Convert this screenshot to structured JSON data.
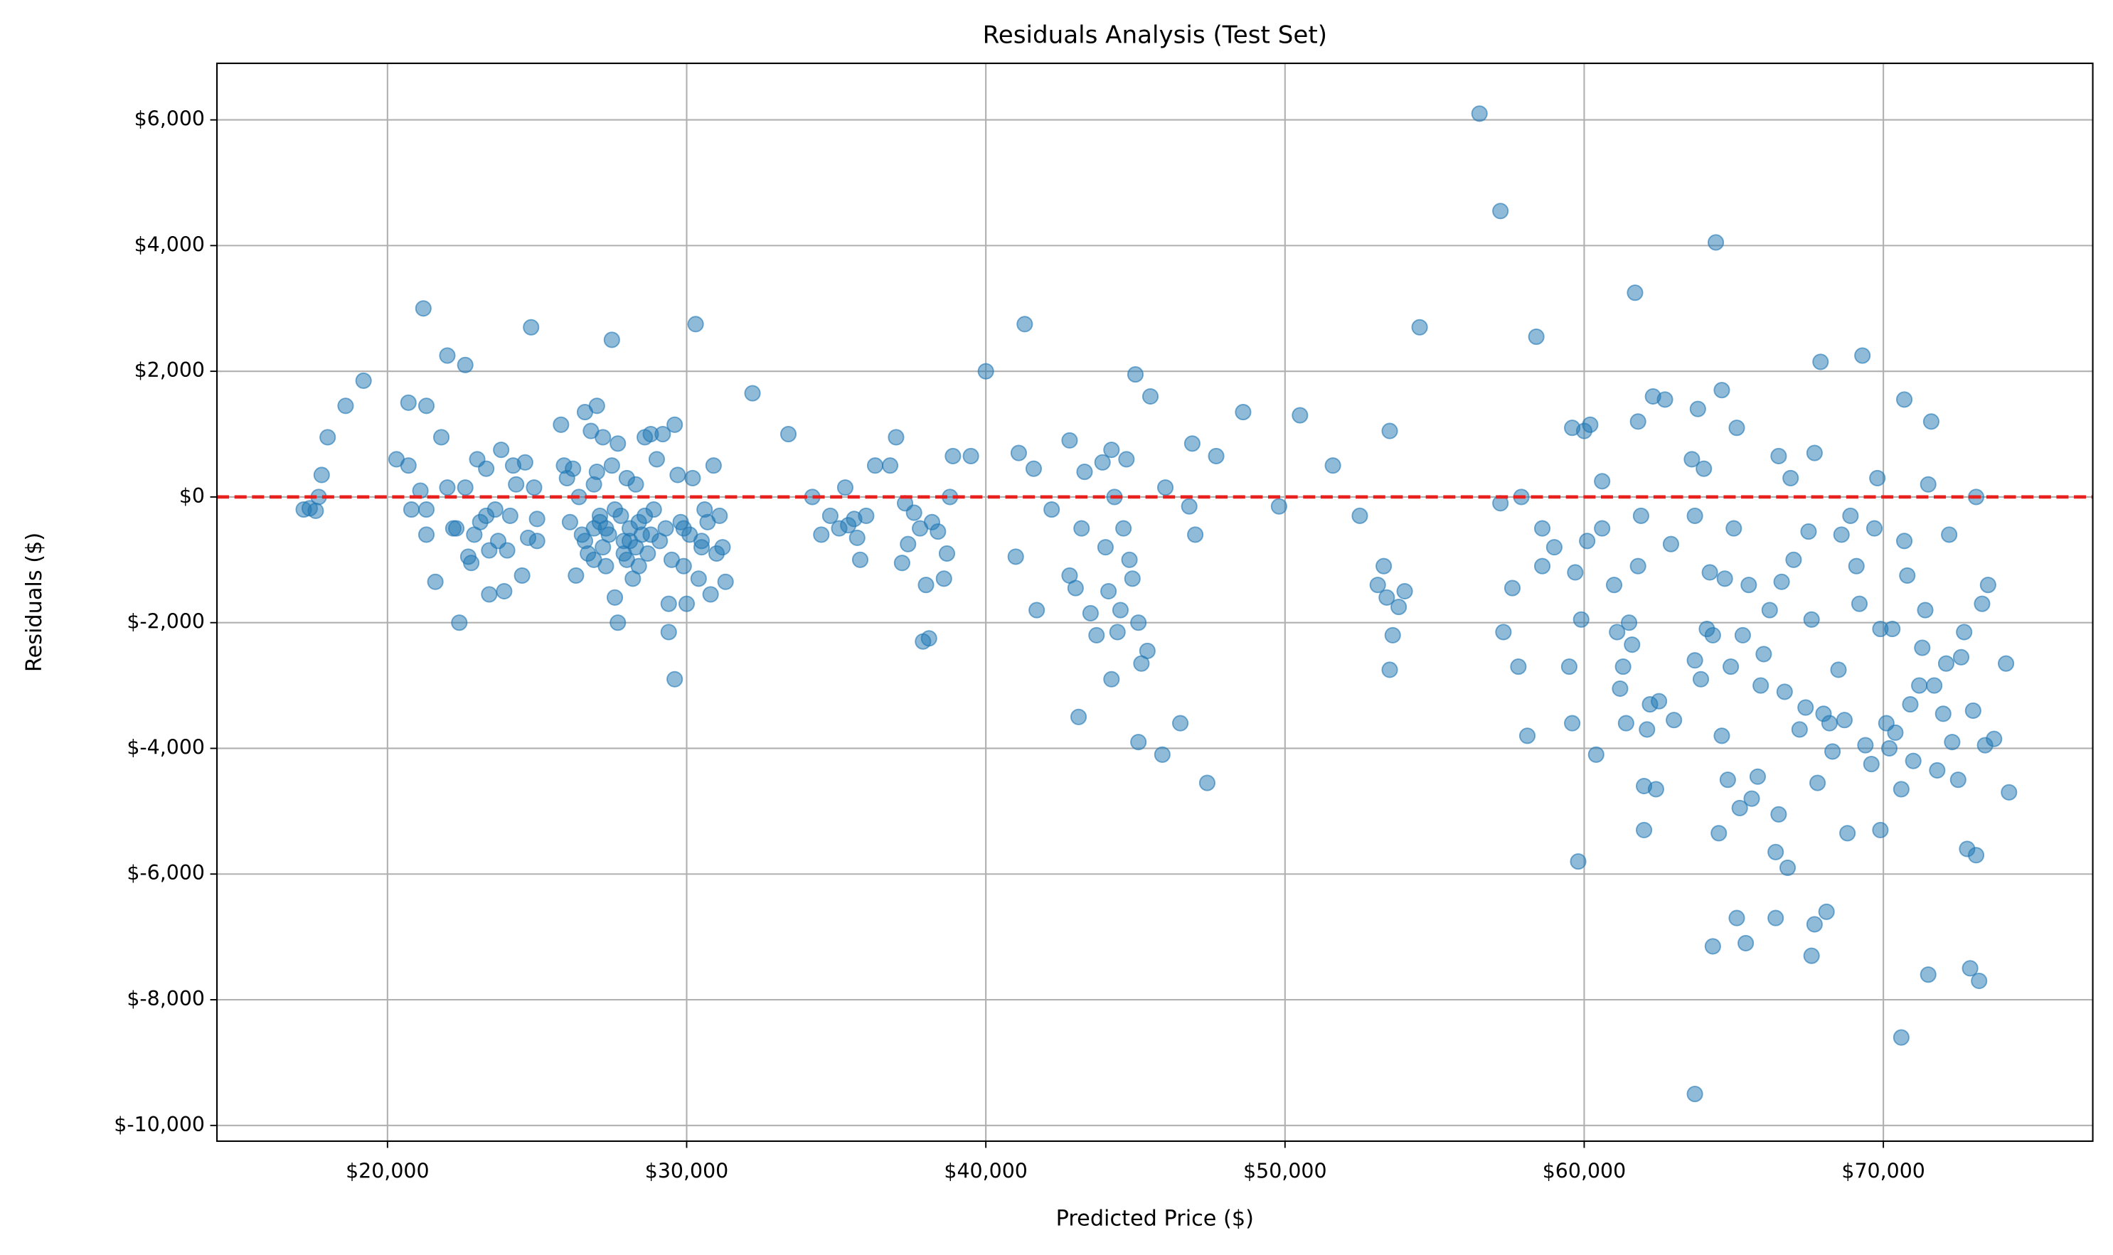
{
  "chart_data": {
    "type": "scatter",
    "title": "Residuals Analysis (Test Set)",
    "x_label": "Predicted Price ($)",
    "y_label": "Residuals ($)",
    "color": "#1f77b4",
    "grid": true,
    "reference_line": {
      "value": 0,
      "color": "#e8201e",
      "style": "dashed"
    },
    "xlim": [
      14300,
      77000
    ],
    "ylim": [
      -10250,
      6900
    ],
    "xticks": [
      {
        "value": 20000,
        "label": "$20,000"
      },
      {
        "value": 30000,
        "label": "$30,000"
      },
      {
        "value": 40000,
        "label": "$40,000"
      },
      {
        "value": 50000,
        "label": "$50,000"
      },
      {
        "value": 60000,
        "label": "$60,000"
      },
      {
        "value": 70000,
        "label": "$70,000"
      }
    ],
    "yticks": [
      {
        "value": -10000,
        "label": "$-10,000"
      },
      {
        "value": -8000,
        "label": "$-8,000"
      },
      {
        "value": -6000,
        "label": "$-6,000"
      },
      {
        "value": -4000,
        "label": "$-4,000"
      },
      {
        "value": -2000,
        "label": "$-2,000"
      },
      {
        "value": 0,
        "label": "$0"
      },
      {
        "value": 2000,
        "label": "$2,000"
      },
      {
        "value": 4000,
        "label": "$4,000"
      },
      {
        "value": 6000,
        "label": "$6,000"
      }
    ],
    "x": [
      17200,
      17400,
      17600,
      17700,
      17800,
      18000,
      18600,
      19200,
      20300,
      20700,
      20700,
      20800,
      21100,
      21200,
      21300,
      21300,
      21300,
      21600,
      21800,
      22000,
      22000,
      22200,
      22300,
      22400,
      22600,
      22600,
      22700,
      22800,
      22900,
      23000,
      23100,
      23300,
      23300,
      23400,
      23400,
      23600,
      23700,
      23800,
      23900,
      24000,
      24100,
      24200,
      24300,
      24500,
      24600,
      24700,
      24800,
      24900,
      25000,
      25000,
      25800,
      25900,
      26000,
      26100,
      26200,
      26300,
      26400,
      26500,
      26600,
      26700,
      26800,
      26900,
      26900,
      27000,
      27000,
      27100,
      27200,
      27200,
      27300,
      27400,
      27500,
      27500,
      27600,
      27700,
      27700,
      27800,
      27900,
      28000,
      28000,
      28100,
      28200,
      28300,
      28300,
      28400,
      28500,
      28600,
      28700,
      28800,
      28900,
      29000,
      29100,
      29200,
      29300,
      29400,
      29400,
      29500,
      29600,
      29600,
      29700,
      29800,
      29900,
      30000,
      30100,
      30200,
      30300,
      30400,
      30500,
      30600,
      30700,
      30800,
      30900,
      31000,
      31100,
      31200,
      31300,
      26600,
      27100,
      27600,
      28100,
      28600,
      27300,
      27900,
      28800,
      29900,
      30500,
      26900,
      28400,
      32200,
      33400,
      34200,
      34500,
      34800,
      35100,
      35300,
      35400,
      35600,
      35700,
      35800,
      36000,
      36300,
      36800,
      37000,
      37200,
      37300,
      37400,
      37600,
      37800,
      37900,
      38000,
      38100,
      38200,
      38400,
      38600,
      38700,
      38800,
      38900,
      39500,
      40000,
      41000,
      41100,
      41300,
      41600,
      41700,
      42200,
      42800,
      42800,
      43000,
      43100,
      43200,
      43300,
      43500,
      43700,
      43900,
      44000,
      44100,
      44200,
      44200,
      44300,
      44400,
      44500,
      44600,
      44700,
      44800,
      44900,
      45000,
      45100,
      45100,
      45200,
      45400,
      45500,
      45900,
      46000,
      46500,
      46800,
      46900,
      47000,
      47400,
      47700,
      48600,
      49800,
      50500,
      51600,
      52500,
      53100,
      53300,
      53400,
      53500,
      53500,
      53600,
      53800,
      54000,
      54500,
      56500,
      57200,
      57200,
      57300,
      57600,
      57800,
      57900,
      58100,
      58400,
      58600,
      58600,
      59000,
      59500,
      59600,
      59600,
      59700,
      59800,
      59900,
      60000,
      60100,
      60200,
      60400,
      60600,
      60600,
      61000,
      61100,
      61200,
      61300,
      61400,
      61500,
      61600,
      61700,
      61800,
      61800,
      61900,
      62000,
      62000,
      62100,
      62200,
      62300,
      62400,
      62500,
      62700,
      62900,
      63000,
      63600,
      63700,
      63700,
      63700,
      63800,
      63900,
      64000,
      64100,
      64200,
      64300,
      64300,
      64400,
      64500,
      64600,
      64600,
      64700,
      64800,
      64900,
      65000,
      65100,
      65100,
      65200,
      65300,
      65400,
      65500,
      65600,
      65800,
      65900,
      66000,
      66200,
      66400,
      66400,
      66500,
      66500,
      66600,
      66700,
      66800,
      66900,
      67000,
      67200,
      67400,
      67500,
      67600,
      67600,
      67700,
      67700,
      67800,
      67900,
      68000,
      68100,
      68200,
      68300,
      68500,
      68600,
      68700,
      68800,
      68900,
      69100,
      69200,
      69300,
      69400,
      69600,
      69700,
      69800,
      69900,
      69900,
      70100,
      70200,
      70300,
      70400,
      70600,
      70600,
      70700,
      70700,
      70800,
      70900,
      71000,
      71200,
      71300,
      71400,
      71500,
      71500,
      71600,
      71700,
      71800,
      72000,
      72100,
      72200,
      72300,
      72500,
      72600,
      72700,
      72800,
      72900,
      73000,
      73100,
      73100,
      73200,
      73300,
      73400,
      73500,
      73700,
      74100,
      74200
    ],
    "values": [
      -200,
      -180,
      -220,
      0,
      350,
      950,
      1450,
      1850,
      600,
      1500,
      500,
      -200,
      100,
      3000,
      1450,
      -200,
      -600,
      -1350,
      950,
      150,
      2250,
      -500,
      -500,
      -2000,
      2100,
      150,
      -950,
      -1050,
      -600,
      600,
      -400,
      450,
      -300,
      -1550,
      -850,
      -200,
      -700,
      750,
      -1500,
      -850,
      -300,
      500,
      200,
      -1250,
      550,
      -650,
      2700,
      150,
      -350,
      -700,
      1150,
      500,
      300,
      -400,
      450,
      -1250,
      0,
      -600,
      1350,
      -900,
      1050,
      200,
      -500,
      1450,
      400,
      -300,
      -800,
      950,
      -1100,
      -600,
      500,
      2500,
      -1600,
      -2000,
      850,
      -300,
      -700,
      300,
      -1000,
      -500,
      -1300,
      200,
      -800,
      -400,
      -600,
      950,
      -900,
      1000,
      -200,
      600,
      -700,
      1000,
      -500,
      -1700,
      -2150,
      -1000,
      1150,
      -2900,
      350,
      -400,
      -1100,
      -1700,
      -600,
      300,
      2750,
      -1300,
      -800,
      -200,
      -400,
      -1550,
      500,
      -900,
      -300,
      -800,
      -1350,
      -700,
      -400,
      -200,
      -700,
      -300,
      -500,
      -900,
      -600,
      -500,
      -700,
      -1000,
      -1100,
      1650,
      1000,
      0,
      -600,
      -300,
      -500,
      150,
      -450,
      -350,
      -650,
      -1000,
      -300,
      500,
      500,
      950,
      -1050,
      -100,
      -750,
      -250,
      -500,
      -2300,
      -1400,
      -2250,
      -400,
      -550,
      -1300,
      -900,
      0,
      650,
      650,
      2000,
      -950,
      700,
      2750,
      450,
      -1800,
      -200,
      900,
      -1250,
      -1450,
      -3500,
      -500,
      400,
      -1850,
      -2200,
      550,
      -800,
      -1500,
      750,
      -2900,
      0,
      -2150,
      -1800,
      -500,
      600,
      -1000,
      -1300,
      1950,
      -2000,
      -3900,
      -2650,
      -2450,
      1600,
      -4100,
      150,
      -3600,
      -150,
      850,
      -600,
      -4550,
      650,
      1350,
      -150,
      1300,
      500,
      -300,
      -1400,
      -1100,
      -1600,
      1050,
      -2750,
      -2200,
      -1750,
      -1500,
      2700,
      6100,
      4550,
      -100,
      -2150,
      -1450,
      -2700,
      0,
      -3800,
      2550,
      -1100,
      -500,
      -800,
      -2700,
      -3600,
      1100,
      -1200,
      -5800,
      -1950,
      1050,
      -700,
      1150,
      -4100,
      -500,
      250,
      -1400,
      -2150,
      -3050,
      -2700,
      -3600,
      -2000,
      -2350,
      3250,
      1200,
      -1100,
      -300,
      -4600,
      -5300,
      -3700,
      -3300,
      1600,
      -4650,
      -3250,
      1550,
      -750,
      -3550,
      600,
      -2600,
      -300,
      -9500,
      1400,
      -2900,
      450,
      -2100,
      -1200,
      -2200,
      -7150,
      4050,
      -5350,
      1700,
      -3800,
      -1300,
      -4500,
      -2700,
      -500,
      1100,
      -6700,
      -4950,
      -2200,
      -7100,
      -1400,
      -4800,
      -4450,
      -3000,
      -2500,
      -1800,
      -6700,
      -5650,
      650,
      -5050,
      -1350,
      -3100,
      -5900,
      300,
      -1000,
      -3700,
      -3350,
      -550,
      -1950,
      -7300,
      700,
      -6800,
      -4550,
      2150,
      -3450,
      -6600,
      -3600,
      -4050,
      -2750,
      -600,
      -3550,
      -5350,
      -300,
      -1100,
      -1700,
      2250,
      -3950,
      -4250,
      -500,
      300,
      -2100,
      -5300,
      -3600,
      -4000,
      -2100,
      -3750,
      -8600,
      -4650,
      1550,
      -700,
      -1250,
      -3300,
      -4200,
      -3000,
      -2400,
      -1800,
      -7600,
      200,
      1200,
      -3000,
      -4350,
      -3450,
      -2650,
      -600,
      -3900,
      -4500,
      -2550,
      -2150,
      -5600,
      -7500,
      -3400,
      -5700,
      0,
      -7700,
      -1700,
      -3950,
      -1400,
      -3850,
      -2650,
      -4700
    ]
  }
}
